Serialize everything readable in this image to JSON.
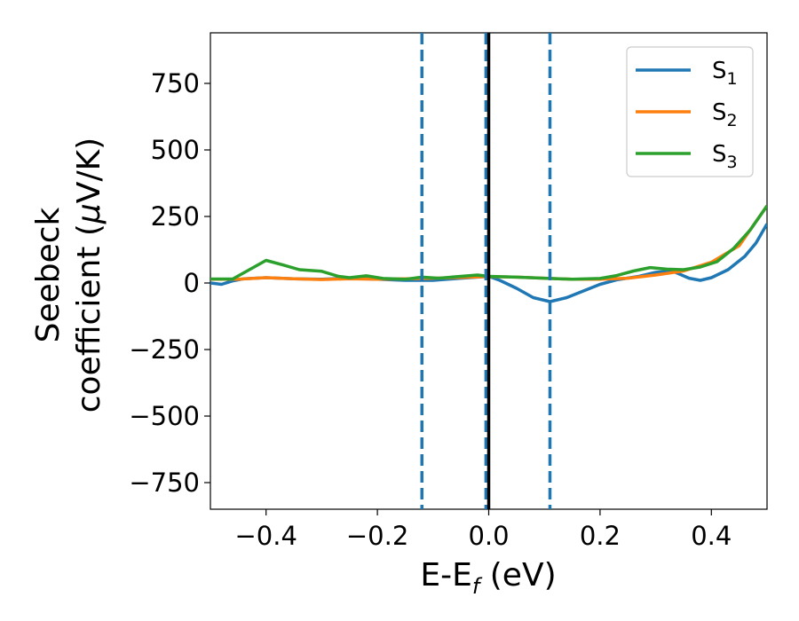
{
  "chart_data": {
    "type": "line",
    "xlabel": {
      "main": "E-E",
      "sub": "f",
      "unit": " (eV)"
    },
    "ylabel": {
      "line1": "Seebeck",
      "line2_prefix": "coefficient  (",
      "mu": "μ",
      "line2_suffix": "V/K)"
    },
    "xlim": [
      -0.5,
      0.5
    ],
    "ylim": [
      -850,
      940
    ],
    "xticks": [
      -0.4,
      -0.2,
      0.0,
      0.2,
      0.4
    ],
    "xtick_labels": [
      "−0.4",
      "−0.2",
      "0.0",
      "0.2",
      "0.4"
    ],
    "yticks": [
      750,
      500,
      250,
      0,
      -250,
      -500,
      -750
    ],
    "ytick_labels": [
      "750",
      "500",
      "250",
      "0",
      "−250",
      "−500",
      "−750"
    ],
    "grid": false,
    "legend_position": "top-right",
    "series": [
      {
        "name": "S",
        "sub": "1",
        "color": "#1f77b4",
        "points": [
          [
            -0.5,
            0
          ],
          [
            -0.48,
            -5
          ],
          [
            -0.46,
            8
          ],
          [
            -0.44,
            16
          ],
          [
            -0.4,
            20
          ],
          [
            -0.35,
            16
          ],
          [
            -0.3,
            14
          ],
          [
            -0.25,
            18
          ],
          [
            -0.2,
            14
          ],
          [
            -0.15,
            10
          ],
          [
            -0.1,
            10
          ],
          [
            -0.05,
            18
          ],
          [
            0.0,
            25
          ],
          [
            0.02,
            10
          ],
          [
            0.05,
            -20
          ],
          [
            0.08,
            -55
          ],
          [
            0.11,
            -70
          ],
          [
            0.14,
            -55
          ],
          [
            0.17,
            -30
          ],
          [
            0.2,
            -5
          ],
          [
            0.23,
            12
          ],
          [
            0.27,
            25
          ],
          [
            0.3,
            40
          ],
          [
            0.33,
            45
          ],
          [
            0.36,
            18
          ],
          [
            0.38,
            10
          ],
          [
            0.4,
            20
          ],
          [
            0.43,
            50
          ],
          [
            0.46,
            100
          ],
          [
            0.48,
            150
          ],
          [
            0.5,
            222
          ]
        ]
      },
      {
        "name": "S",
        "sub": "2",
        "color": "#ff7f0e",
        "points": [
          [
            -0.5,
            14
          ],
          [
            -0.45,
            14
          ],
          [
            -0.4,
            20
          ],
          [
            -0.35,
            16
          ],
          [
            -0.3,
            13
          ],
          [
            -0.25,
            16
          ],
          [
            -0.2,
            14
          ],
          [
            -0.15,
            16
          ],
          [
            -0.1,
            18
          ],
          [
            -0.05,
            21
          ],
          [
            0.0,
            24
          ],
          [
            0.05,
            22
          ],
          [
            0.1,
            18
          ],
          [
            0.15,
            14
          ],
          [
            0.2,
            14
          ],
          [
            0.25,
            18
          ],
          [
            0.3,
            30
          ],
          [
            0.35,
            45
          ],
          [
            0.4,
            78
          ],
          [
            0.45,
            140
          ],
          [
            0.5,
            290
          ]
        ]
      },
      {
        "name": "S",
        "sub": "3",
        "color": "#2ca02c",
        "points": [
          [
            -0.5,
            15
          ],
          [
            -0.46,
            15
          ],
          [
            -0.43,
            50
          ],
          [
            -0.4,
            85
          ],
          [
            -0.37,
            68
          ],
          [
            -0.34,
            50
          ],
          [
            -0.3,
            44
          ],
          [
            -0.27,
            25
          ],
          [
            -0.25,
            20
          ],
          [
            -0.22,
            27
          ],
          [
            -0.19,
            17
          ],
          [
            -0.15,
            14
          ],
          [
            -0.12,
            22
          ],
          [
            -0.09,
            18
          ],
          [
            -0.05,
            25
          ],
          [
            -0.02,
            30
          ],
          [
            0.0,
            25
          ],
          [
            0.05,
            22
          ],
          [
            0.1,
            18
          ],
          [
            0.15,
            14
          ],
          [
            0.2,
            17
          ],
          [
            0.23,
            28
          ],
          [
            0.26,
            45
          ],
          [
            0.29,
            58
          ],
          [
            0.32,
            52
          ],
          [
            0.35,
            50
          ],
          [
            0.38,
            60
          ],
          [
            0.41,
            80
          ],
          [
            0.44,
            130
          ],
          [
            0.47,
            200
          ],
          [
            0.5,
            290
          ]
        ]
      }
    ],
    "vlines": [
      {
        "x": -0.12,
        "style": "dashed",
        "color": "#1f77b4"
      },
      {
        "x": -0.005,
        "style": "dashed",
        "color": "#1f77b4"
      },
      {
        "x": 0.11,
        "style": "dashed",
        "color": "#1f77b4"
      },
      {
        "x": 0.0,
        "style": "solid",
        "color": "#000000"
      }
    ]
  }
}
